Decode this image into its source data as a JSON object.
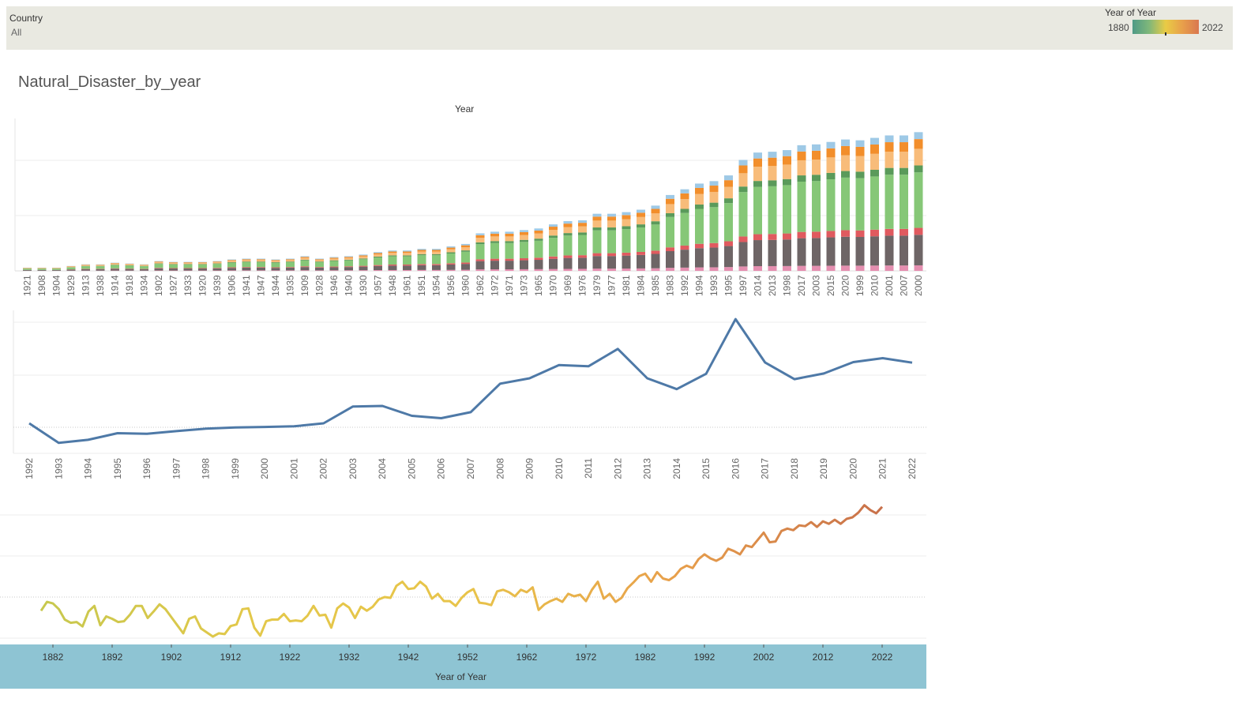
{
  "filter": {
    "label": "Country",
    "value": "All"
  },
  "legend": {
    "title": "Year of Year",
    "min": "1880",
    "max": "2022",
    "colors": [
      "#4f9a86",
      "#7fb77a",
      "#e9cb45",
      "#e8a04b",
      "#d9774f"
    ]
  },
  "sheet_title": "Natural_Disaster_by_year",
  "chart_data": [
    {
      "type": "bar",
      "stacked": true,
      "title": "",
      "x_axis_title": "Year",
      "categories": [
        "1921",
        "1908",
        "1904",
        "1929",
        "1913",
        "1938",
        "1914",
        "1918",
        "1934",
        "1902",
        "1927",
        "1933",
        "1920",
        "1939",
        "1906",
        "1941",
        "1947",
        "1944",
        "1935",
        "1909",
        "1928",
        "1946",
        "1940",
        "1930",
        "1957",
        "1948",
        "1961",
        "1951",
        "1954",
        "1956",
        "1960",
        "1962",
        "1972",
        "1971",
        "1973",
        "1965",
        "1970",
        "1969",
        "1976",
        "1979",
        "1977",
        "1981",
        "1984",
        "1985",
        "1983",
        "1992",
        "1994",
        "1993",
        "1995",
        "1997",
        "2014",
        "2013",
        "1998",
        "2017",
        "2003",
        "2015",
        "2020",
        "1999",
        "2010",
        "2001",
        "2007",
        "2000"
      ],
      "totals": [
        4,
        4,
        4,
        6,
        8,
        8,
        10,
        9,
        8,
        12,
        11,
        11,
        11,
        12,
        14,
        15,
        15,
        14,
        15,
        18,
        15,
        17,
        18,
        20,
        23,
        25,
        25,
        27,
        27,
        30,
        33,
        46,
        48,
        48,
        50,
        52,
        57,
        61,
        62,
        70,
        70,
        72,
        75,
        80,
        93,
        100,
        107,
        110,
        117,
        136,
        145,
        146,
        148,
        154,
        155,
        158,
        161,
        160,
        163,
        166,
        166,
        170
      ],
      "series": [
        {
          "name": "",
          "color": "#e58fb0",
          "share": 0.04
        },
        {
          "name": "",
          "color": "#6e6566",
          "share": 0.22
        },
        {
          "name": "",
          "color": "#e05a5f",
          "share": 0.05
        },
        {
          "name": "",
          "color": "#86c777",
          "share": 0.4
        },
        {
          "name": "",
          "color": "#5a9a5a",
          "share": 0.05
        },
        {
          "name": "",
          "color": "#f8bc7a",
          "share": 0.12
        },
        {
          "name": "",
          "color": "#f28e2b",
          "share": 0.07
        },
        {
          "name": "",
          "color": "#9ec9e6",
          "share": 0.05
        }
      ]
    },
    {
      "type": "line",
      "title": "",
      "x": [
        "1992",
        "1993",
        "1994",
        "1995",
        "1996",
        "1997",
        "1998",
        "1999",
        "2000",
        "2001",
        "2002",
        "2003",
        "2004",
        "2005",
        "2006",
        "2007",
        "2008",
        "2009",
        "2010",
        "2011",
        "2012",
        "2013",
        "2014",
        "2015",
        "2016",
        "2017",
        "2018",
        "2019",
        "2020",
        "2021",
        "2022"
      ],
      "y": [
        100,
        35,
        45,
        67,
        65,
        74,
        82,
        86,
        88,
        90,
        100,
        156,
        158,
        125,
        117,
        137,
        232,
        250,
        294,
        290,
        348,
        250,
        214,
        265,
        447,
        303,
        247,
        266,
        304,
        317,
        302
      ],
      "color": "#4e79a7",
      "ylim": [
        0,
        500
      ],
      "grid": true
    },
    {
      "type": "line",
      "title": "",
      "x_axis_title": "Year of Year",
      "xticks": [
        "1882",
        "1892",
        "1902",
        "1912",
        "1922",
        "1932",
        "1942",
        "1952",
        "1962",
        "1972",
        "1982",
        "1992",
        "2002",
        "2012",
        "2022"
      ],
      "x_start": 1880,
      "x_end": 2022,
      "y": [
        0.68,
        0.9,
        0.86,
        0.72,
        0.46,
        0.38,
        0.4,
        0.29,
        0.66,
        0.8,
        0.32,
        0.54,
        0.48,
        0.4,
        0.42,
        0.58,
        0.8,
        0.8,
        0.5,
        0.66,
        0.84,
        0.72,
        0.52,
        0.32,
        0.12,
        0.48,
        0.54,
        0.24,
        0.14,
        0.04,
        0.12,
        0.1,
        0.3,
        0.34,
        0.72,
        0.74,
        0.26,
        0.06,
        0.42,
        0.46,
        0.46,
        0.6,
        0.42,
        0.44,
        0.42,
        0.56,
        0.8,
        0.56,
        0.58,
        0.26,
        0.74,
        0.86,
        0.76,
        0.5,
        0.78,
        0.68,
        0.78,
        0.96,
        1.02,
        1.0,
        1.3,
        1.4,
        1.22,
        1.24,
        1.4,
        1.28,
        0.98,
        1.1,
        0.92,
        0.92,
        0.8,
        1.0,
        1.14,
        1.22,
        0.88,
        0.86,
        0.82,
        1.16,
        1.2,
        1.14,
        1.04,
        1.2,
        1.14,
        1.26,
        0.7,
        0.84,
        0.92,
        0.98,
        0.9,
        1.1,
        1.04,
        1.08,
        0.92,
        1.2,
        1.4,
        0.98,
        1.1,
        0.9,
        1.0,
        1.24,
        1.38,
        1.54,
        1.6,
        1.4,
        1.64,
        1.48,
        1.44,
        1.54,
        1.72,
        1.8,
        1.74,
        1.96,
        2.08,
        1.98,
        1.92,
        2.0,
        2.22,
        2.16,
        2.08,
        2.3,
        2.26,
        2.44,
        2.62,
        2.38,
        2.4,
        2.66,
        2.72,
        2.68,
        2.8,
        2.78,
        2.88,
        2.76,
        2.9,
        2.84,
        2.94,
        2.84,
        2.96,
        3.0,
        3.12,
        3.3,
        3.18,
        3.1,
        3.26
      ],
      "colors": [
        "#4f9a86",
        "#7fb77a",
        "#e9cb45",
        "#e8a04b",
        "#d9774f"
      ],
      "grid": true
    }
  ]
}
